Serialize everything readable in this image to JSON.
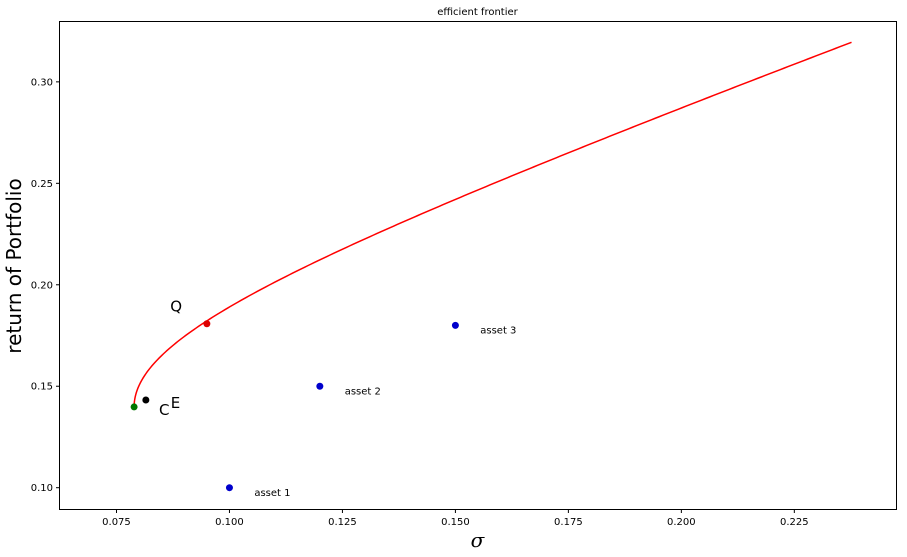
{
  "chart_data": {
    "type": "line",
    "title": "efficient frontier",
    "xlabel": "σ",
    "ylabel": "return of Portfolio",
    "xlim": [
      0.0625,
      0.2475
    ],
    "ylim": [
      0.0895,
      0.3295
    ],
    "x_ticks": [
      0.075,
      0.1,
      0.125,
      0.15,
      0.175,
      0.2,
      0.225
    ],
    "x_tick_labels": [
      "0.075",
      "0.100",
      "0.125",
      "0.150",
      "0.175",
      "0.200",
      "0.225"
    ],
    "y_ticks": [
      0.1,
      0.15,
      0.2,
      0.25,
      0.3
    ],
    "y_tick_labels": [
      "0.10",
      "0.15",
      "0.20",
      "0.25",
      "0.30"
    ],
    "grid": false,
    "frontier": {
      "color": "#ff0000",
      "min_variance_point": {
        "sigma": 0.0789,
        "return": 0.1398
      },
      "points": [
        {
          "sigma": 0.0789,
          "return": 0.1398
        },
        {
          "sigma": 0.0798,
          "return": 0.15
        },
        {
          "sigma": 0.0825,
          "return": 0.16
        },
        {
          "sigma": 0.087,
          "return": 0.17
        },
        {
          "sigma": 0.095,
          "return": 0.1808
        },
        {
          "sigma": 0.101,
          "return": 0.19
        },
        {
          "sigma": 0.109,
          "return": 0.2
        },
        {
          "sigma": 0.1275,
          "return": 0.22
        },
        {
          "sigma": 0.1485,
          "return": 0.24
        },
        {
          "sigma": 0.1705,
          "return": 0.26
        },
        {
          "sigma": 0.1935,
          "return": 0.28
        },
        {
          "sigma": 0.217,
          "return": 0.3
        },
        {
          "sigma": 0.2475,
          "return": 0.3195
        }
      ]
    },
    "points": [
      {
        "name": "asset 1",
        "sigma": 0.1,
        "return": 0.1,
        "color": "#0000cc",
        "label": "asset 1",
        "label_dx": 0.0055,
        "label_dy": -0.004
      },
      {
        "name": "asset 2",
        "sigma": 0.12,
        "return": 0.15,
        "color": "#0000cc",
        "label": "asset 2",
        "label_dx": 0.0055,
        "label_dy": -0.004
      },
      {
        "name": "asset 3",
        "sigma": 0.15,
        "return": 0.18,
        "color": "#0000cc",
        "label": "asset 3",
        "label_dx": 0.0055,
        "label_dy": -0.004
      },
      {
        "name": "Q",
        "sigma": 0.095,
        "return": 0.1808,
        "color": "#dd0000",
        "label": "Q",
        "label_dx": -0.0055,
        "label_dy": 0.006
      },
      {
        "name": "C",
        "sigma": 0.0789,
        "return": 0.1398,
        "color": "#007700",
        "label": "C",
        "label_dx": 0.0055,
        "label_dy": -0.004
      },
      {
        "name": "E",
        "sigma": 0.0815,
        "return": 0.1432,
        "color": "#000000",
        "label": "E",
        "label_dx": 0.0055,
        "label_dy": -0.004
      }
    ]
  }
}
